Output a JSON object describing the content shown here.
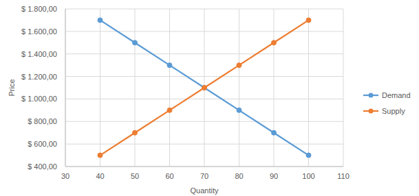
{
  "chart_data": {
    "type": "line",
    "x_label": "Quantity",
    "y_label": "Price",
    "x": [
      40,
      50,
      60,
      70,
      80,
      90,
      100
    ],
    "series": [
      {
        "name": "Demand",
        "color": "#5b9bd5",
        "marker": "circle",
        "values": [
          1700,
          1500,
          1300,
          1100,
          900,
          700,
          500
        ]
      },
      {
        "name": "Supply",
        "color": "#ed7d31",
        "marker": "circle",
        "values": [
          500,
          700,
          900,
          1100,
          1300,
          1500,
          1700
        ]
      }
    ],
    "xlim": [
      30,
      110
    ],
    "xticks": [
      30,
      40,
      50,
      60,
      70,
      80,
      90,
      100,
      110
    ],
    "ylim": [
      400,
      1800
    ],
    "yticks": [
      {
        "value": 400,
        "label": "$ 400,00"
      },
      {
        "value": 600,
        "label": "$ 600,00"
      },
      {
        "value": 800,
        "label": "$ 800,00"
      },
      {
        "value": 1000,
        "label": "$ 1.000,00"
      },
      {
        "value": 1200,
        "label": "$ 1.200,00"
      },
      {
        "value": 1400,
        "label": "$ 1.400,00"
      },
      {
        "value": 1600,
        "label": "$ 1.600,00"
      },
      {
        "value": 1800,
        "label": "$ 1.800,00"
      }
    ],
    "grid": true,
    "legend": "right"
  }
}
